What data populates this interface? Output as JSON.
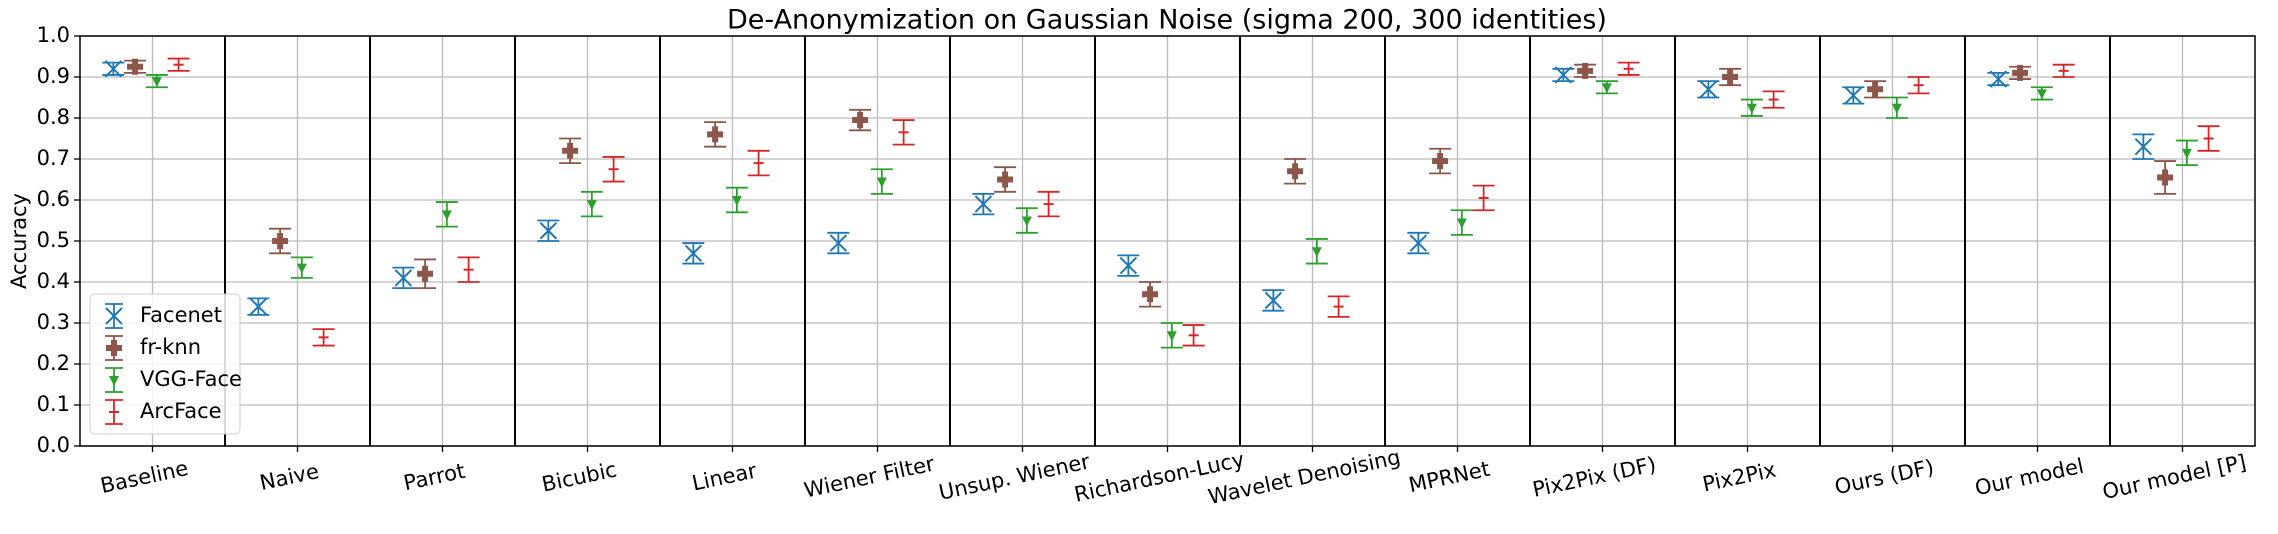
{
  "chart_data": {
    "type": "errorbar",
    "title": "De-Anonymization on Gaussian Noise (sigma 200, 300 identities)",
    "y_label": "Accuracy",
    "categories": [
      "Baseline",
      "Naive",
      "Parrot",
      "Bicubic",
      "Linear",
      "Wiener Filter",
      "Unsup. Wiener",
      "Richardson-Lucy",
      "Wavelet Denoising",
      "MPRNet",
      "Pix2Pix (DF)",
      "Pix2Pix",
      "Ours (DF)",
      "Our model",
      "Our model [P]"
    ],
    "series": [
      {
        "name": "Facenet",
        "color": "#1f77b4",
        "marker": "x",
        "values": [
          0.92,
          0.34,
          0.41,
          0.525,
          0.47,
          0.495,
          0.59,
          0.44,
          0.355,
          0.495,
          0.905,
          0.87,
          0.855,
          0.895,
          0.73
        ],
        "errors": [
          0.015,
          0.02,
          0.025,
          0.025,
          0.025,
          0.025,
          0.025,
          0.025,
          0.025,
          0.025,
          0.015,
          0.02,
          0.02,
          0.015,
          0.03
        ]
      },
      {
        "name": "fr-knn",
        "color": "#8c564b",
        "marker": "P",
        "values": [
          0.925,
          0.5,
          0.42,
          0.72,
          0.76,
          0.795,
          0.65,
          0.37,
          0.67,
          0.695,
          0.915,
          0.9,
          0.87,
          0.91,
          0.655
        ],
        "errors": [
          0.015,
          0.03,
          0.035,
          0.03,
          0.03,
          0.025,
          0.03,
          0.03,
          0.03,
          0.03,
          0.015,
          0.02,
          0.02,
          0.015,
          0.04
        ]
      },
      {
        "name": "VGG-Face",
        "color": "#2ca02c",
        "marker": "v",
        "values": [
          0.89,
          0.435,
          0.565,
          0.59,
          0.6,
          0.645,
          0.55,
          0.27,
          0.475,
          0.545,
          0.875,
          0.825,
          0.825,
          0.86,
          0.715
        ],
        "errors": [
          0.015,
          0.025,
          0.03,
          0.03,
          0.03,
          0.03,
          0.03,
          0.03,
          0.03,
          0.03,
          0.015,
          0.02,
          0.025,
          0.015,
          0.03
        ]
      },
      {
        "name": "ArcFace",
        "color": "#d62728",
        "marker": "_",
        "values": [
          0.93,
          0.265,
          0.43,
          0.675,
          0.69,
          0.765,
          0.59,
          0.27,
          0.34,
          0.605,
          0.92,
          0.845,
          0.88,
          0.915,
          0.75
        ],
        "errors": [
          0.015,
          0.02,
          0.03,
          0.03,
          0.03,
          0.03,
          0.03,
          0.025,
          0.025,
          0.03,
          0.015,
          0.02,
          0.02,
          0.015,
          0.03
        ]
      }
    ],
    "ylim": [
      0,
      1
    ],
    "yticks": [
      {
        "value": 0,
        "label": "0.0"
      },
      0.1,
      0.2,
      0.3,
      0.4,
      0.5,
      0.6,
      0.7,
      0.8,
      0.9,
      {
        "value": 1,
        "label": "1.0"
      }
    ],
    "grid": true,
    "legend": "lower left"
  }
}
